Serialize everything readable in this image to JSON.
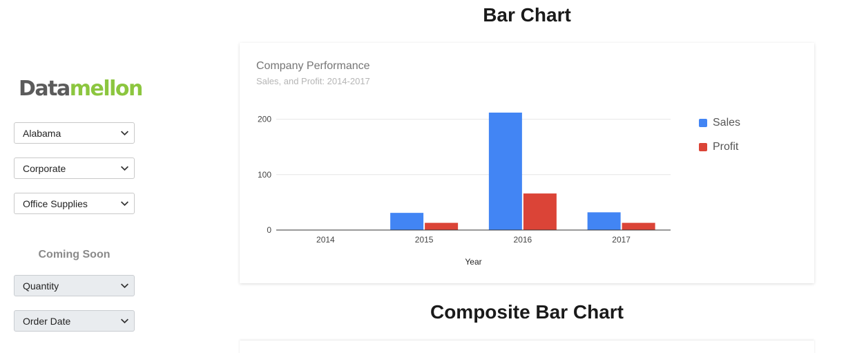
{
  "sidebar": {
    "logo": {
      "part_a": "Data",
      "part_b": "mellon"
    },
    "filters": [
      {
        "value": "Alabama"
      },
      {
        "value": "Corporate"
      },
      {
        "value": "Office Supplies"
      }
    ],
    "coming_soon": "Coming Soon",
    "disabled_filters": [
      {
        "value": "Quantity"
      },
      {
        "value": "Order Date"
      }
    ]
  },
  "headings": {
    "bar_chart": "Bar Chart",
    "composite_bar_chart": "Composite Bar Chart"
  },
  "icons": {
    "dropdown": "chevron-down-icon"
  },
  "colors": {
    "sales": "#4285f4",
    "profit": "#db4437",
    "logo_gray": "#5b5b5b",
    "logo_green": "#8cc63f"
  },
  "chart_data": {
    "type": "bar",
    "title": "Company Performance",
    "subtitle": "Sales, and Profit: 2014-2017",
    "xlabel": "Year",
    "ylabel": "",
    "categories": [
      "2014",
      "2015",
      "2016",
      "2017"
    ],
    "series": [
      {
        "name": "Sales",
        "color": "#4285f4",
        "values": [
          0,
          31,
          212,
          32
        ]
      },
      {
        "name": "Profit",
        "color": "#db4437",
        "values": [
          0,
          13,
          66,
          13
        ]
      }
    ],
    "ylim": [
      0,
      212
    ],
    "yticks": [
      0,
      100,
      200
    ],
    "grid": true,
    "legend_position": "right"
  }
}
